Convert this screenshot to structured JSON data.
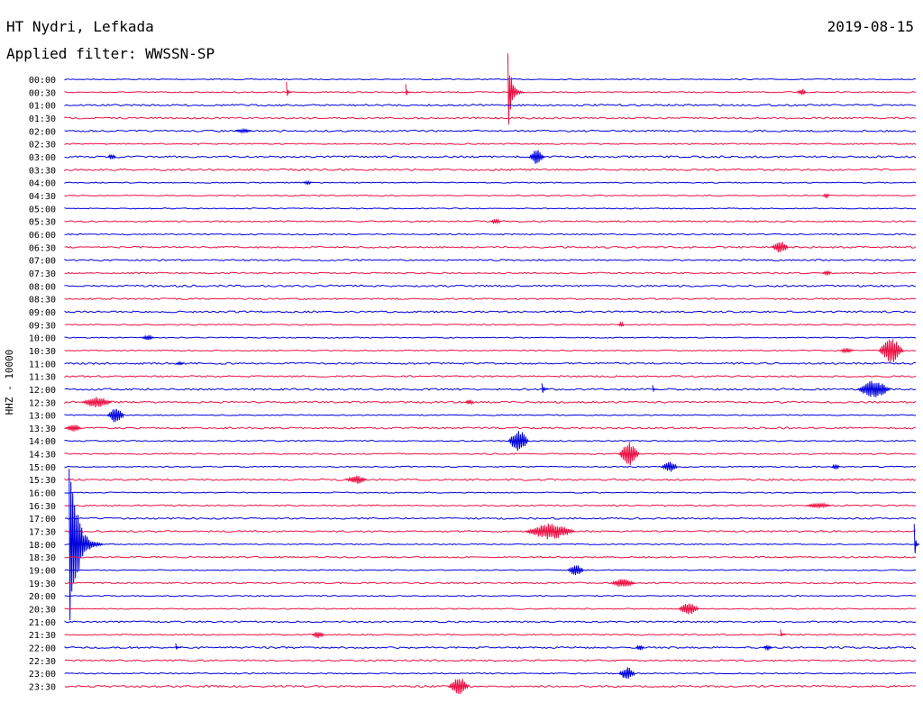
{
  "header": {
    "station": "HT Nydri, Lefkada",
    "filter": "Applied filter: WWSSN-SP",
    "date": "2019-08-15"
  },
  "colors": {
    "trace_a": "#0000dd",
    "trace_b": "#ee1144"
  },
  "chart_data": {
    "type": "line",
    "title": "HT Nydri, Lefkada",
    "subtitle": "Applied filter: WWSSN-SP",
    "date": "2019-08-15",
    "ylabel": "HHZ - 10000",
    "xlabel": "",
    "row_labels": [
      "00:00",
      "00:30",
      "01:00",
      "01:30",
      "02:00",
      "02:30",
      "03:00",
      "03:30",
      "04:00",
      "04:30",
      "05:00",
      "05:30",
      "06:00",
      "06:30",
      "07:00",
      "07:30",
      "08:00",
      "08:30",
      "09:00",
      "09:30",
      "10:00",
      "10:30",
      "11:00",
      "11:30",
      "12:00",
      "12:30",
      "13:00",
      "13:30",
      "14:00",
      "14:30",
      "15:00",
      "15:30",
      "16:00",
      "16:30",
      "17:00",
      "17:30",
      "18:00",
      "18:30",
      "19:00",
      "19:30",
      "20:00",
      "20:30",
      "21:00",
      "21:30",
      "22:00",
      "22:30",
      "23:00",
      "23:30"
    ],
    "row_minutes": 30,
    "row_colors": [
      "blue",
      "red"
    ],
    "events": [
      {
        "row": "00:30",
        "x": 0.26,
        "amp": 14,
        "len": 0.006,
        "decay": "impulsive"
      },
      {
        "row": "00:30",
        "x": 0.4,
        "amp": 12,
        "len": 0.006,
        "decay": "impulsive"
      },
      {
        "row": "00:30",
        "x": 0.52,
        "amp": 50,
        "len": 0.02,
        "decay": "impulsive"
      },
      {
        "row": "00:30",
        "x": 0.86,
        "amp": 4,
        "len": 0.01,
        "decay": "spindle"
      },
      {
        "row": "02:00",
        "x": 0.2,
        "amp": 2,
        "len": 0.02,
        "decay": "spindle"
      },
      {
        "row": "03:00",
        "x": 0.05,
        "amp": 3,
        "len": 0.01,
        "decay": "spindle"
      },
      {
        "row": "03:00",
        "x": 0.545,
        "amp": 9,
        "len": 0.018,
        "decay": "spindle"
      },
      {
        "row": "04:00",
        "x": 0.28,
        "amp": 2,
        "len": 0.01,
        "decay": "spindle"
      },
      {
        "row": "04:30",
        "x": 0.89,
        "amp": 3,
        "len": 0.008,
        "decay": "spindle"
      },
      {
        "row": "05:30",
        "x": 0.5,
        "amp": 3,
        "len": 0.012,
        "decay": "spindle"
      },
      {
        "row": "06:30",
        "x": 0.83,
        "amp": 7,
        "len": 0.02,
        "decay": "spindle"
      },
      {
        "row": "07:30",
        "x": 0.89,
        "amp": 3,
        "len": 0.01,
        "decay": "spindle"
      },
      {
        "row": "09:30",
        "x": 0.65,
        "amp": 3,
        "len": 0.006,
        "decay": "spindle"
      },
      {
        "row": "10:00",
        "x": 0.09,
        "amp": 3,
        "len": 0.015,
        "decay": "spindle"
      },
      {
        "row": "10:30",
        "x": 0.91,
        "amp": 3,
        "len": 0.015,
        "decay": "spindle"
      },
      {
        "row": "10:30",
        "x": 0.955,
        "amp": 14,
        "len": 0.03,
        "decay": "spindle"
      },
      {
        "row": "11:00",
        "x": 0.13,
        "amp": 2,
        "len": 0.01,
        "decay": "spindle"
      },
      {
        "row": "12:00",
        "x": 0.56,
        "amp": 9,
        "len": 0.008,
        "decay": "impulsive"
      },
      {
        "row": "12:00",
        "x": 0.69,
        "amp": 5,
        "len": 0.004,
        "decay": "impulsive"
      },
      {
        "row": "12:00",
        "x": 0.93,
        "amp": 10,
        "len": 0.04,
        "decay": "spindle"
      },
      {
        "row": "12:30",
        "x": 0.02,
        "amp": 6,
        "len": 0.035,
        "decay": "spindle"
      },
      {
        "row": "12:30",
        "x": 0.47,
        "amp": 3,
        "len": 0.01,
        "decay": "spindle"
      },
      {
        "row": "13:00",
        "x": 0.05,
        "amp": 9,
        "len": 0.02,
        "decay": "spindle"
      },
      {
        "row": "13:30",
        "x": 0.0,
        "amp": 4,
        "len": 0.02,
        "decay": "spindle"
      },
      {
        "row": "14:00",
        "x": 0.52,
        "amp": 12,
        "len": 0.025,
        "decay": "spindle"
      },
      {
        "row": "14:30",
        "x": 0.65,
        "amp": 13,
        "len": 0.025,
        "decay": "spindle"
      },
      {
        "row": "15:00",
        "x": 0.7,
        "amp": 6,
        "len": 0.02,
        "decay": "spindle"
      },
      {
        "row": "15:00",
        "x": 0.9,
        "amp": 3,
        "len": 0.01,
        "decay": "spindle"
      },
      {
        "row": "15:30",
        "x": 0.33,
        "amp": 5,
        "len": 0.025,
        "decay": "spindle"
      },
      {
        "row": "16:30",
        "x": 0.87,
        "amp": 3,
        "len": 0.03,
        "decay": "spindle"
      },
      {
        "row": "17:30",
        "x": 0.54,
        "amp": 9,
        "len": 0.06,
        "decay": "spindle"
      },
      {
        "row": "18:00",
        "x": 0.005,
        "amp": 125,
        "len": 0.04,
        "decay": "impulsive"
      },
      {
        "row": "18:00",
        "x": 0.997,
        "amp": 28,
        "len": 0.003,
        "decay": "impulsive"
      },
      {
        "row": "19:00",
        "x": 0.59,
        "amp": 6,
        "len": 0.02,
        "decay": "spindle"
      },
      {
        "row": "19:30",
        "x": 0.64,
        "amp": 5,
        "len": 0.03,
        "decay": "spindle"
      },
      {
        "row": "20:30",
        "x": 0.72,
        "amp": 7,
        "len": 0.025,
        "decay": "spindle"
      },
      {
        "row": "21:30",
        "x": 0.29,
        "amp": 4,
        "len": 0.015,
        "decay": "spindle"
      },
      {
        "row": "21:30",
        "x": 0.84,
        "amp": 7,
        "len": 0.004,
        "decay": "impulsive"
      },
      {
        "row": "22:00",
        "x": 0.13,
        "amp": 6,
        "len": 0.004,
        "decay": "impulsive"
      },
      {
        "row": "22:00",
        "x": 0.67,
        "amp": 3,
        "len": 0.01,
        "decay": "spindle"
      },
      {
        "row": "22:00",
        "x": 0.82,
        "amp": 3,
        "len": 0.01,
        "decay": "spindle"
      },
      {
        "row": "23:00",
        "x": 0.65,
        "amp": 7,
        "len": 0.02,
        "decay": "spindle"
      },
      {
        "row": "23:30",
        "x": 0.45,
        "amp": 10,
        "len": 0.025,
        "decay": "spindle"
      }
    ]
  }
}
